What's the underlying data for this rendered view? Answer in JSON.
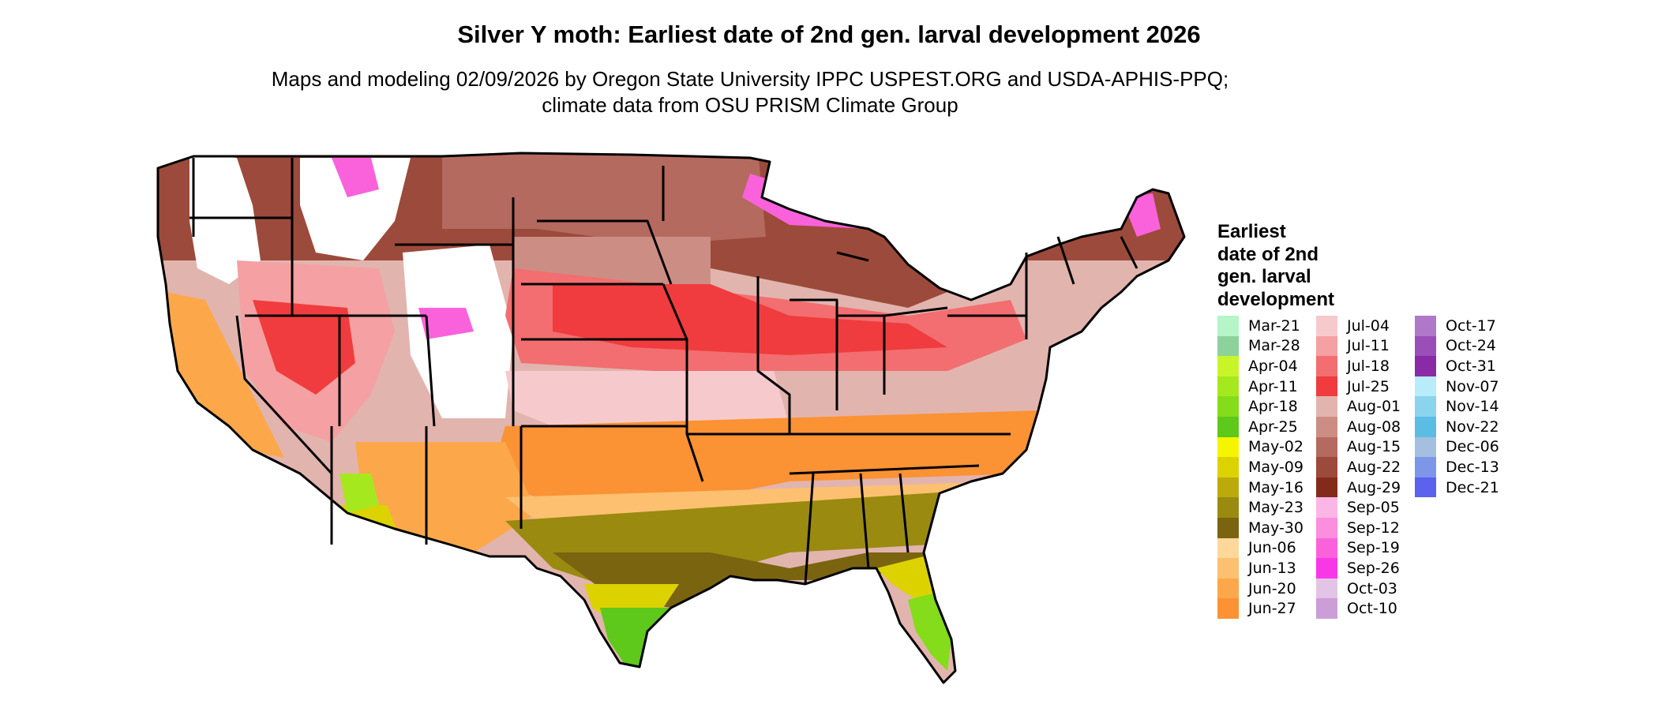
{
  "title": "Silver Y moth: Earliest date of 2nd gen. larval development 2026",
  "subtitle": "Maps and modeling 02/09/2026 by Oregon State University IPPC USPEST.ORG and USDA-APHIS-PPQ; climate data from OSU PRISM Climate Group",
  "legend": {
    "title": "Earliest\ndate of 2nd\ngen. larval\ndevelopment",
    "columns": [
      [
        {
          "label": "Mar-21",
          "color": "#b5f5c8"
        },
        {
          "label": "Mar-28",
          "color": "#8bd39a"
        },
        {
          "label": "Apr-04",
          "color": "#c8f52a"
        },
        {
          "label": "Apr-11",
          "color": "#a6e81e"
        },
        {
          "label": "Apr-18",
          "color": "#84dc1a"
        },
        {
          "label": "Apr-25",
          "color": "#5ec91a"
        },
        {
          "label": "May-02",
          "color": "#f5f500"
        },
        {
          "label": "May-09",
          "color": "#dcd200"
        },
        {
          "label": "May-16",
          "color": "#bcaa0a"
        },
        {
          "label": "May-23",
          "color": "#9a8a10"
        },
        {
          "label": "May-30",
          "color": "#7a6410"
        },
        {
          "label": "Jun-06",
          "color": "#fed89a"
        },
        {
          "label": "Jun-13",
          "color": "#fdc070"
        },
        {
          "label": "Jun-20",
          "color": "#fca84a"
        },
        {
          "label": "Jun-27",
          "color": "#fb9233"
        }
      ],
      [
        {
          "label": "Jul-04",
          "color": "#f6cacc"
        },
        {
          "label": "Jul-11",
          "color": "#f5a0a2"
        },
        {
          "label": "Jul-18",
          "color": "#f26e70"
        },
        {
          "label": "Jul-25",
          "color": "#f03c3e"
        },
        {
          "label": "Aug-01",
          "color": "#e2b4ae"
        },
        {
          "label": "Aug-08",
          "color": "#cc8e84"
        },
        {
          "label": "Aug-15",
          "color": "#b46a5e"
        },
        {
          "label": "Aug-22",
          "color": "#9c4a3c"
        },
        {
          "label": "Aug-29",
          "color": "#842a1a"
        },
        {
          "label": "Sep-05",
          "color": "#fcb6e6"
        },
        {
          "label": "Sep-12",
          "color": "#fb8ede"
        },
        {
          "label": "Sep-19",
          "color": "#fa62dc"
        },
        {
          "label": "Sep-26",
          "color": "#f838e6"
        },
        {
          "label": "Oct-03",
          "color": "#e2c4e6"
        },
        {
          "label": "Oct-10",
          "color": "#cc9ed8"
        }
      ],
      [
        {
          "label": "Oct-17",
          "color": "#b078c8"
        },
        {
          "label": "Oct-24",
          "color": "#9a4eb8"
        },
        {
          "label": "Oct-31",
          "color": "#8a2aa6"
        },
        {
          "label": "Nov-07",
          "color": "#b8ecfa"
        },
        {
          "label": "Nov-14",
          "color": "#8ad4ee"
        },
        {
          "label": "Nov-22",
          "color": "#5cbde4"
        },
        {
          "label": "Dec-06",
          "color": "#a4bfe0"
        },
        {
          "label": "Dec-13",
          "color": "#7e96e8"
        },
        {
          "label": "Dec-21",
          "color": "#5a62ee"
        }
      ]
    ]
  }
}
